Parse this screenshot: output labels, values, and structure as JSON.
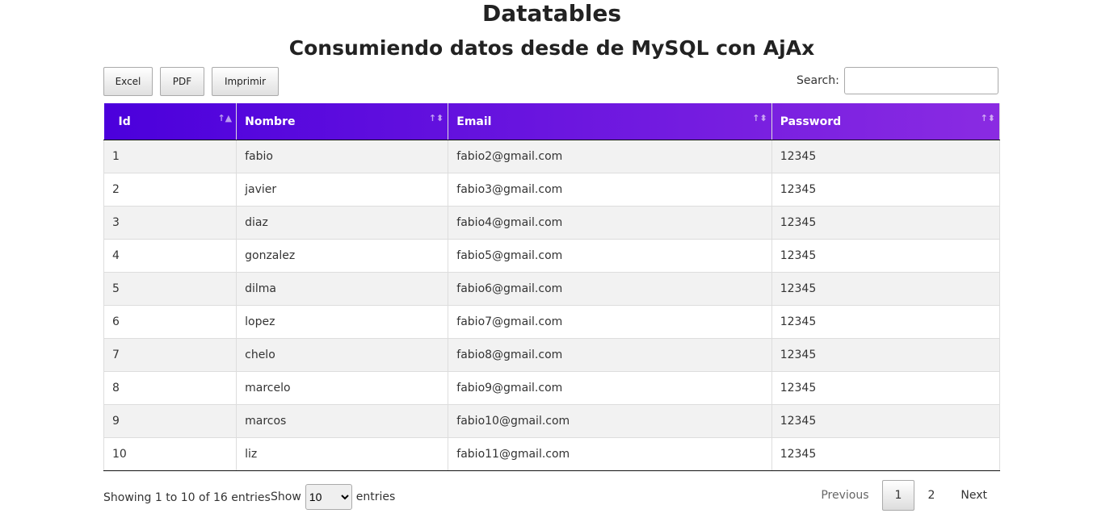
{
  "title": "Datatables",
  "subtitle": "Consumiendo datos desde de MySQL con AjAx",
  "buttons": {
    "excel": "Excel",
    "pdf": "PDF",
    "print": "Imprimir"
  },
  "search": {
    "label": "Search:",
    "value": ""
  },
  "columns": [
    "Id",
    "Nombre",
    "Email",
    "Password"
  ],
  "header_gradient": [
    "#4b00dc",
    "#8a2be2"
  ],
  "rows": [
    [
      "1",
      "fabio",
      "fabio2@gmail.com",
      "12345"
    ],
    [
      "2",
      "javier",
      "fabio3@gmail.com",
      "12345"
    ],
    [
      "3",
      "diaz",
      "fabio4@gmail.com",
      "12345"
    ],
    [
      "4",
      "gonzalez",
      "fabio5@gmail.com",
      "12345"
    ],
    [
      "5",
      "dilma",
      "fabio6@gmail.com",
      "12345"
    ],
    [
      "6",
      "lopez",
      "fabio7@gmail.com",
      "12345"
    ],
    [
      "7",
      "chelo",
      "fabio8@gmail.com",
      "12345"
    ],
    [
      "8",
      "marcelo",
      "fabio9@gmail.com",
      "12345"
    ],
    [
      "9",
      "marcos",
      "fabio10@gmail.com",
      "12345"
    ],
    [
      "10",
      "liz",
      "fabio11@gmail.com",
      "12345"
    ]
  ],
  "info": "Showing 1 to 10 of 16 entries",
  "length": {
    "show": "Show",
    "value": "10",
    "entries": "entries"
  },
  "pagination": {
    "previous": "Previous",
    "pages": [
      "1",
      "2"
    ],
    "next": "Next"
  }
}
